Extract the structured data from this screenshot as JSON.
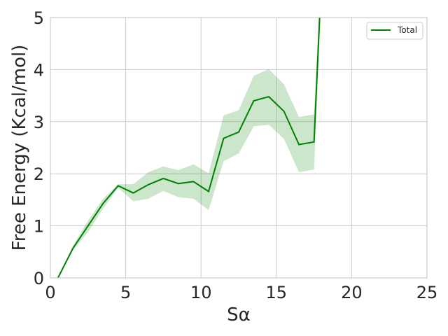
{
  "chart_data": {
    "type": "line",
    "title": "",
    "xlabel": "Sα",
    "ylabel": "Free Energy (Kcal/mol)",
    "xlim": [
      0,
      25
    ],
    "ylim": [
      0,
      5
    ],
    "xticks": [
      "0",
      "5",
      "10",
      "15",
      "20",
      "25"
    ],
    "yticks": [
      "0",
      "1",
      "2",
      "3",
      "4",
      "5"
    ],
    "grid": true,
    "legend_position": "top-right",
    "series": [
      {
        "name": "Total",
        "color": "#008000",
        "band_color": "#008000",
        "points": [
          {
            "x": 0.5,
            "y": 0.0,
            "lo": 0.0,
            "hi": 0.0
          },
          {
            "x": 1.5,
            "y": 0.57,
            "lo": 0.53,
            "hi": 0.62
          },
          {
            "x": 2.5,
            "y": 1.0,
            "lo": 0.88,
            "hi": 1.1
          },
          {
            "x": 3.5,
            "y": 1.43,
            "lo": 1.33,
            "hi": 1.52
          },
          {
            "x": 4.5,
            "y": 1.77,
            "lo": 1.73,
            "hi": 1.8
          },
          {
            "x": 5.5,
            "y": 1.63,
            "lo": 1.47,
            "hi": 1.8
          },
          {
            "x": 6.5,
            "y": 1.79,
            "lo": 1.52,
            "hi": 2.03
          },
          {
            "x": 7.5,
            "y": 1.91,
            "lo": 1.67,
            "hi": 2.14
          },
          {
            "x": 8.5,
            "y": 1.81,
            "lo": 1.55,
            "hi": 2.07
          },
          {
            "x": 9.5,
            "y": 1.85,
            "lo": 1.52,
            "hi": 2.18
          },
          {
            "x": 10.5,
            "y": 1.66,
            "lo": 1.3,
            "hi": 2.01
          },
          {
            "x": 11.5,
            "y": 2.68,
            "lo": 2.24,
            "hi": 3.12
          },
          {
            "x": 12.5,
            "y": 2.8,
            "lo": 2.39,
            "hi": 3.22
          },
          {
            "x": 13.5,
            "y": 3.4,
            "lo": 2.91,
            "hi": 3.88
          },
          {
            "x": 14.5,
            "y": 3.48,
            "lo": 2.94,
            "hi": 4.01
          },
          {
            "x": 15.5,
            "y": 3.2,
            "lo": 2.67,
            "hi": 3.72
          },
          {
            "x": 16.5,
            "y": 2.56,
            "lo": 2.03,
            "hi": 3.09
          },
          {
            "x": 17.5,
            "y": 2.61,
            "lo": 2.08,
            "hi": 3.14
          },
          {
            "x": 18.5,
            "y": 9.0,
            "lo": 9.0,
            "hi": 9.0
          }
        ]
      }
    ]
  }
}
